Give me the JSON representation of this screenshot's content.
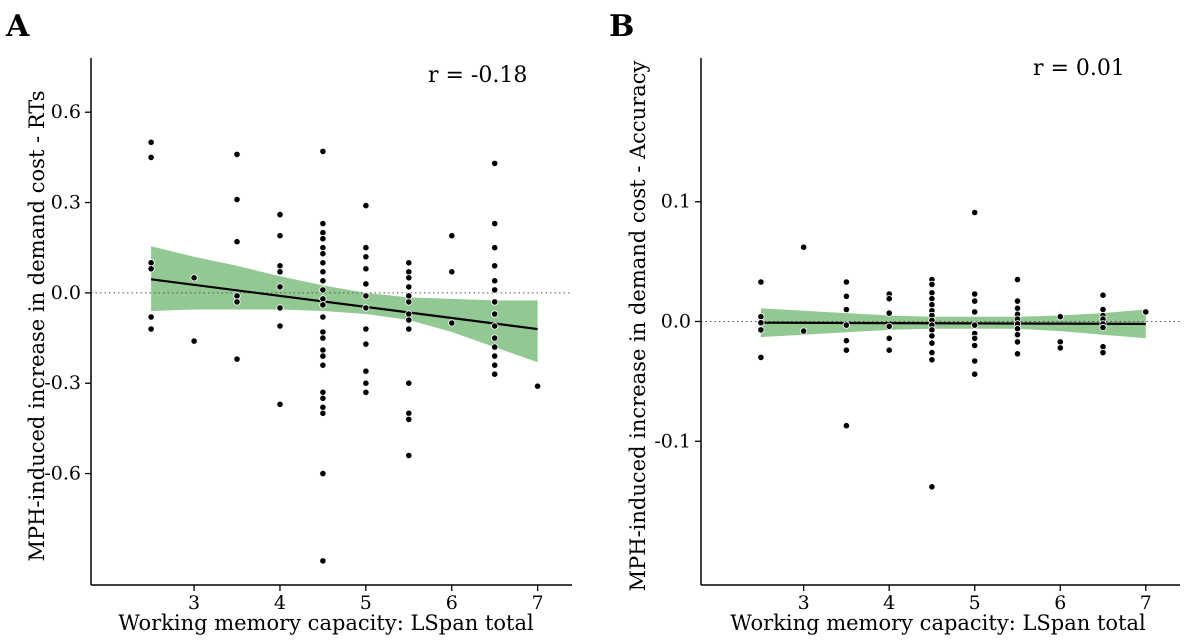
{
  "chart_data": [
    {
      "type": "scatter",
      "panel_label": "A",
      "annotation": "r = -0.18",
      "xlabel": "Working memory capacity: LSpan total",
      "ylabel": "MPH-induced increase in demand cost - RTs",
      "xlim": [
        1.8,
        7.4
      ],
      "ylim": [
        -0.97,
        0.78
      ],
      "xticks": [
        3,
        4,
        5,
        6,
        7
      ],
      "yticks": [
        -0.6,
        -0.3,
        0.0,
        0.3,
        0.6
      ],
      "ytick_labels": [
        "-0.6",
        "-0.3",
        "0.0",
        "0.3",
        "0.6"
      ],
      "grid": false,
      "reference_line_y": 0,
      "fit": {
        "x": [
          2.5,
          7.0
        ],
        "y": [
          0.045,
          -0.12
        ]
      },
      "ci_band": {
        "x": [
          2.5,
          3.0,
          3.5,
          4.0,
          4.5,
          5.0,
          5.5,
          6.0,
          6.5,
          7.0
        ],
        "lower": [
          -0.06,
          -0.055,
          -0.055,
          -0.055,
          -0.06,
          -0.07,
          -0.09,
          -0.13,
          -0.18,
          -0.23
        ],
        "upper": [
          0.155,
          0.12,
          0.09,
          0.055,
          0.025,
          0.0,
          -0.015,
          -0.02,
          -0.025,
          -0.025
        ]
      },
      "points": {
        "x": [
          2.5,
          2.5,
          2.5,
          2.5,
          2.5,
          2.5,
          3.0,
          3.0,
          3.5,
          3.5,
          3.5,
          3.5,
          3.5,
          3.5,
          4.0,
          4.0,
          4.0,
          4.0,
          4.0,
          4.0,
          4.0,
          4.0,
          4.5,
          4.5,
          4.5,
          4.5,
          4.5,
          4.5,
          4.5,
          4.5,
          4.5,
          4.5,
          4.5,
          4.5,
          4.5,
          4.5,
          4.5,
          4.5,
          4.5,
          4.5,
          4.5,
          4.5,
          4.5,
          4.5,
          4.5,
          4.5,
          5.0,
          5.0,
          5.0,
          5.0,
          5.0,
          5.0,
          5.0,
          5.0,
          5.0,
          5.0,
          5.0,
          5.0,
          5.5,
          5.5,
          5.5,
          5.5,
          5.5,
          5.5,
          5.5,
          5.5,
          5.5,
          5.5,
          5.5,
          5.5,
          5.5,
          6.0,
          6.0,
          6.0,
          6.5,
          6.5,
          6.5,
          6.5,
          6.5,
          6.5,
          6.5,
          6.5,
          6.5,
          6.5,
          6.5,
          6.5,
          6.5,
          6.5,
          7.0
        ],
        "y": [
          0.5,
          0.45,
          0.1,
          0.08,
          -0.08,
          -0.12,
          0.05,
          -0.16,
          0.46,
          0.31,
          0.17,
          -0.01,
          -0.03,
          -0.22,
          0.26,
          0.19,
          0.09,
          0.07,
          0.02,
          -0.05,
          -0.11,
          -0.37,
          0.47,
          0.23,
          0.2,
          0.18,
          0.15,
          0.13,
          0.1,
          0.07,
          0.04,
          0.01,
          -0.02,
          -0.04,
          -0.08,
          -0.13,
          -0.15,
          -0.19,
          -0.21,
          -0.24,
          -0.33,
          -0.35,
          -0.38,
          -0.4,
          -0.6,
          -0.89,
          0.29,
          0.15,
          0.12,
          0.08,
          0.03,
          -0.01,
          -0.05,
          -0.12,
          -0.17,
          -0.26,
          -0.3,
          -0.33,
          0.1,
          0.07,
          0.05,
          0.02,
          -0.01,
          -0.03,
          -0.07,
          -0.09,
          -0.12,
          -0.3,
          -0.4,
          -0.42,
          -0.54,
          0.19,
          0.07,
          -0.1,
          0.43,
          0.23,
          0.15,
          0.09,
          0.04,
          0.01,
          -0.03,
          -0.07,
          -0.11,
          -0.15,
          -0.18,
          -0.21,
          -0.24,
          -0.27,
          -0.31
        ]
      }
    },
    {
      "type": "scatter",
      "panel_label": "B",
      "annotation": "r = 0.01",
      "xlabel": "Working memory capacity: LSpan total",
      "ylabel": "MPH-induced increase in demand cost - Accuracy",
      "xlim": [
        1.8,
        7.4
      ],
      "ylim": [
        -0.22,
        0.22
      ],
      "xticks": [
        3,
        4,
        5,
        6,
        7
      ],
      "yticks": [
        -0.1,
        0.0,
        0.1
      ],
      "ytick_labels": [
        "-0.1",
        "0.0",
        "0.1"
      ],
      "grid": false,
      "reference_line_y": 0,
      "fit": {
        "x": [
          2.5,
          7.0
        ],
        "y": [
          -0.001,
          -0.002
        ]
      },
      "ci_band": {
        "x": [
          2.5,
          3.0,
          3.5,
          4.0,
          4.5,
          5.0,
          5.5,
          6.0,
          6.5,
          7.0
        ],
        "lower": [
          -0.013,
          -0.011,
          -0.009,
          -0.007,
          -0.006,
          -0.006,
          -0.006,
          -0.008,
          -0.011,
          -0.014
        ],
        "upper": [
          0.011,
          0.009,
          0.007,
          0.005,
          0.004,
          0.004,
          0.004,
          0.005,
          0.007,
          0.01
        ]
      },
      "points": {
        "x": [
          2.5,
          2.5,
          2.5,
          2.5,
          2.5,
          3.0,
          3.0,
          3.5,
          3.5,
          3.5,
          3.5,
          3.5,
          3.5,
          3.5,
          4.0,
          4.0,
          4.0,
          4.0,
          4.0,
          4.0,
          4.5,
          4.5,
          4.5,
          4.5,
          4.5,
          4.5,
          4.5,
          4.5,
          4.5,
          4.5,
          4.5,
          4.5,
          4.5,
          4.5,
          4.5,
          5.0,
          5.0,
          5.0,
          5.0,
          5.0,
          5.0,
          5.0,
          5.0,
          5.0,
          5.0,
          5.5,
          5.5,
          5.5,
          5.5,
          5.5,
          5.5,
          5.5,
          5.5,
          5.5,
          5.5,
          6.0,
          6.0,
          6.0,
          6.5,
          6.5,
          6.5,
          6.5,
          6.5,
          6.5,
          6.5,
          6.5,
          7.0
        ],
        "y": [
          0.033,
          0.004,
          -0.001,
          -0.007,
          -0.03,
          0.062,
          -0.008,
          0.033,
          0.021,
          0.01,
          -0.003,
          -0.016,
          -0.024,
          -0.087,
          0.023,
          0.019,
          0.007,
          -0.004,
          -0.014,
          -0.024,
          0.035,
          0.031,
          0.024,
          0.019,
          0.014,
          0.009,
          0.005,
          0.001,
          -0.003,
          -0.007,
          -0.012,
          -0.018,
          -0.026,
          -0.032,
          -0.138,
          0.091,
          0.023,
          0.017,
          0.008,
          -0.003,
          -0.01,
          -0.014,
          -0.02,
          -0.033,
          -0.044,
          0.035,
          0.017,
          0.011,
          0.006,
          0.002,
          -0.002,
          -0.006,
          -0.011,
          -0.017,
          -0.027,
          0.004,
          -0.017,
          -0.022,
          0.022,
          0.01,
          0.005,
          0.002,
          -0.002,
          -0.005,
          -0.021,
          -0.026,
          0.008
        ]
      }
    }
  ]
}
